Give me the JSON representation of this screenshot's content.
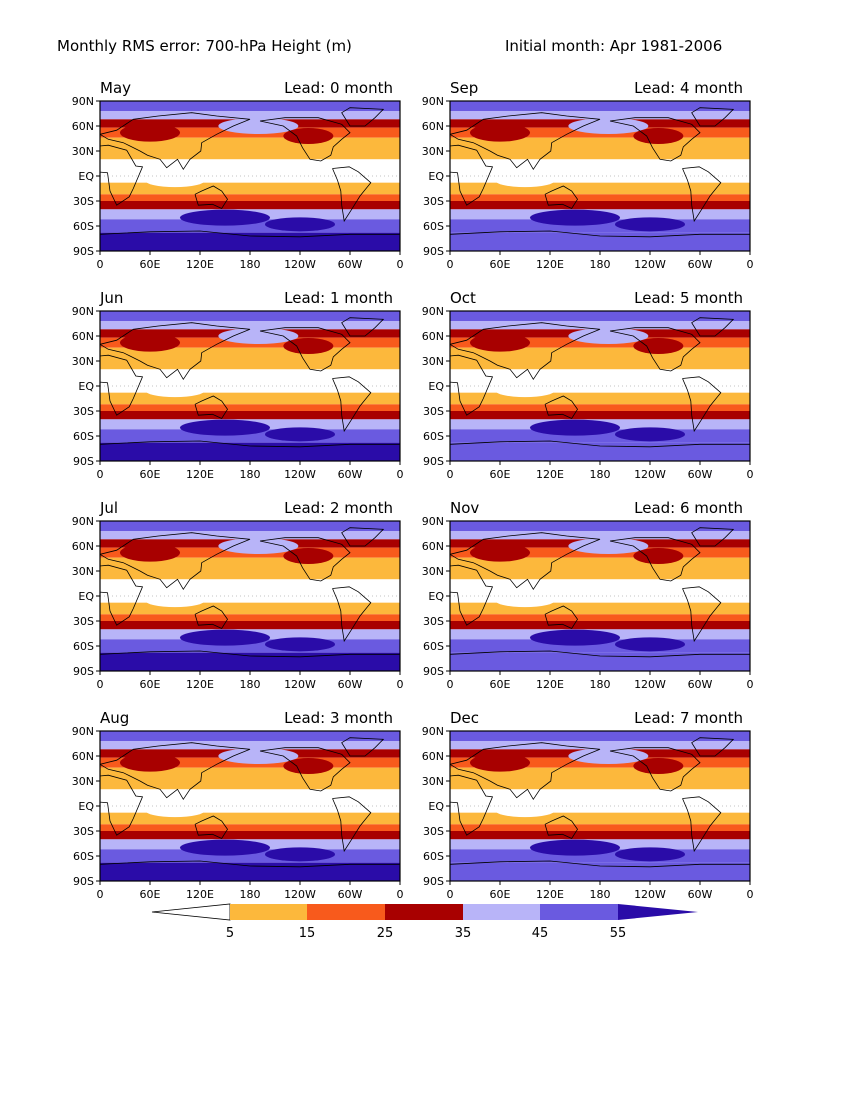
{
  "figure": {
    "title_left": "Monthly RMS error: 700-hPa Height (m)",
    "title_right": "Initial month: Apr 1981-2006"
  },
  "axes": {
    "x_ticks": [
      "0",
      "60E",
      "120E",
      "180",
      "120W",
      "60W",
      "0"
    ],
    "y_ticks": [
      "90N",
      "60N",
      "30N",
      "EQ",
      "30S",
      "60S",
      "90S"
    ]
  },
  "panels": [
    {
      "month": "May",
      "lead": "Lead: 0 month"
    },
    {
      "month": "Sep",
      "lead": "Lead: 4 month"
    },
    {
      "month": "Jun",
      "lead": "Lead: 1 month"
    },
    {
      "month": "Oct",
      "lead": "Lead: 5 month"
    },
    {
      "month": "Jul",
      "lead": "Lead: 2 month"
    },
    {
      "month": "Nov",
      "lead": "Lead: 6 month"
    },
    {
      "month": "Aug",
      "lead": "Lead: 3 month"
    },
    {
      "month": "Dec",
      "lead": "Lead: 7 month"
    }
  ],
  "colorbar": {
    "labels": [
      "5",
      "15",
      "25",
      "35",
      "45",
      "55"
    ],
    "colors": [
      "#ffffff",
      "#fcb83c",
      "#f85a1c",
      "#a80000",
      "#b8b4f8",
      "#6a5ae0",
      "#2a0ca8"
    ]
  },
  "map_colors": {
    "white": "#ffffff",
    "orange": "#fcb83c",
    "red_orange": "#f85a1c",
    "dark_red": "#a80000",
    "light_purple": "#b8b4f8",
    "medium_purple": "#6a5ae0",
    "dark_blue": "#2a0ca8",
    "coast": "#000000"
  }
}
